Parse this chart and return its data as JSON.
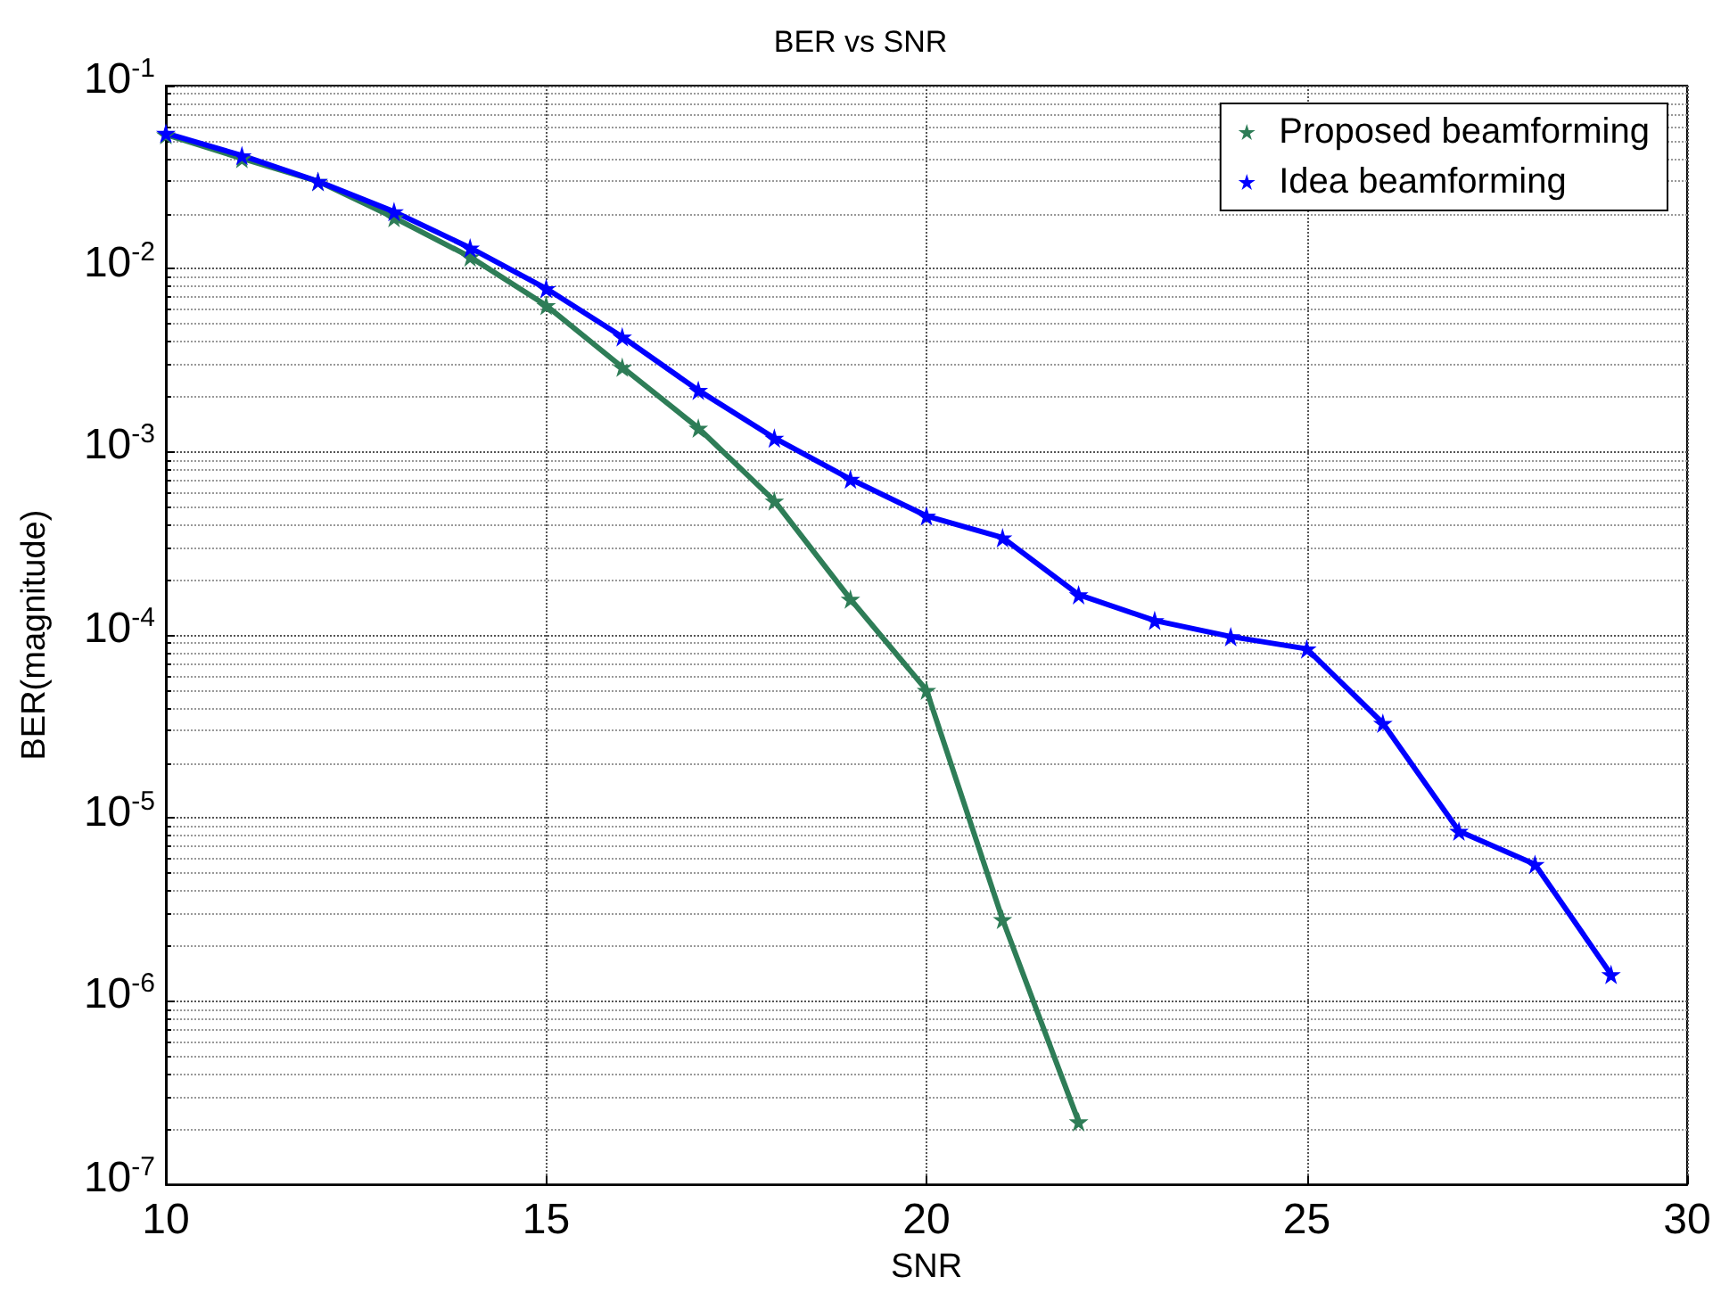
{
  "chart_data": {
    "type": "line",
    "title": "BER vs SNR",
    "xlabel": "SNR",
    "ylabel": "BER(magnitude)",
    "x": [
      10,
      11,
      12,
      13,
      14,
      15,
      16,
      17,
      18,
      19,
      20,
      21,
      22,
      23,
      24,
      25,
      26,
      27,
      28,
      29
    ],
    "series": [
      {
        "name": "Proposed beamforming",
        "color": "#2e7d57",
        "x": [
          10,
          11,
          12,
          13,
          14,
          15,
          16,
          17,
          18,
          19,
          20,
          21,
          22
        ],
        "values": [
          0.054,
          0.04,
          0.03,
          0.019,
          0.0116,
          0.0063,
          0.0029,
          0.00135,
          0.00054,
          0.000157,
          5e-05,
          2.8e-06,
          2.2e-07
        ]
      },
      {
        "name": "Idea beamforming",
        "color": "#0000ff",
        "values": [
          0.055,
          0.0415,
          0.03,
          0.0205,
          0.013,
          0.0078,
          0.00425,
          0.00217,
          0.00119,
          0.00071,
          0.000447,
          0.00034,
          0.000166,
          0.00012,
          9.8e-05,
          8.4e-05,
          3.3e-05,
          8.5e-06,
          5.6e-06,
          1.4e-06
        ]
      }
    ],
    "log": "y",
    "xlim": [
      10,
      30
    ],
    "xticks": [
      10,
      15,
      20,
      25,
      30
    ],
    "ylim": [
      1e-07,
      0.1
    ],
    "yticks": [
      {
        "value": 1e-07,
        "label": "10$^{-7}$"
      },
      {
        "value": 1e-06,
        "label": "10$^{-6}$"
      },
      {
        "value": 1e-05,
        "label": "10$^{-5}$"
      },
      {
        "value": 0.0001,
        "label": "10$^{-4}$"
      },
      {
        "value": 0.001,
        "label": "10$^{-3}$"
      },
      {
        "value": 0.01,
        "label": "10$^{-2}$"
      },
      {
        "value": 0.1,
        "label": "10$^{-1}$"
      }
    ],
    "grid": true,
    "legend": "top right",
    "marker": "star",
    "line_style": "solid"
  }
}
